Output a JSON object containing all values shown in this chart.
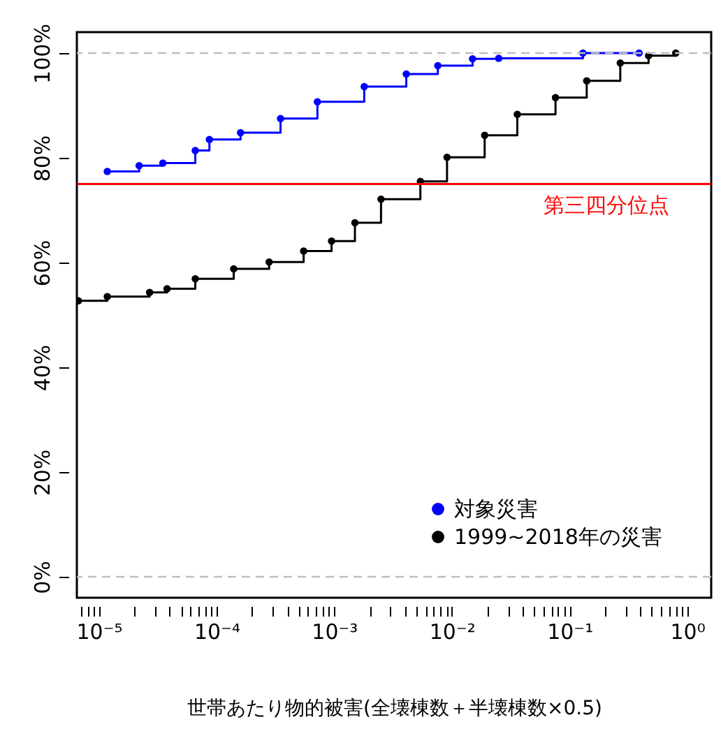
{
  "chart_data": {
    "type": "step",
    "xlabel": "世帯あたり物的被害(全壊棟数＋半壊棟数×0.5)",
    "log": "x",
    "grid": false,
    "legend": "bottom right",
    "marker": "circle",
    "line_style": "solid",
    "xlim": [
      6.5e-06,
      1.6
    ],
    "ylim": [
      -4,
      104
    ],
    "xticks": [
      {
        "value": 7e-06,
        "label": null
      },
      {
        "value": 8e-06,
        "label": null
      },
      {
        "value": 9e-06,
        "label": null
      },
      {
        "value": 1e-05,
        "label": "10⁻⁵"
      },
      {
        "value": 2e-05,
        "label": null
      },
      {
        "value": 3e-05,
        "label": null
      },
      {
        "value": 4e-05,
        "label": null
      },
      {
        "value": 5e-05,
        "label": null
      },
      {
        "value": 6e-05,
        "label": null
      },
      {
        "value": 7e-05,
        "label": null
      },
      {
        "value": 8e-05,
        "label": null
      },
      {
        "value": 9e-05,
        "label": null
      },
      {
        "value": 0.0001,
        "label": "10⁻⁴"
      },
      {
        "value": 0.0002,
        "label": null
      },
      {
        "value": 0.0003,
        "label": null
      },
      {
        "value": 0.0004,
        "label": null
      },
      {
        "value": 0.0005,
        "label": null
      },
      {
        "value": 0.0006,
        "label": null
      },
      {
        "value": 0.0007,
        "label": null
      },
      {
        "value": 0.0008,
        "label": null
      },
      {
        "value": 0.0009,
        "label": null
      },
      {
        "value": 0.001,
        "label": "10⁻³"
      },
      {
        "value": 0.002,
        "label": null
      },
      {
        "value": 0.003,
        "label": null
      },
      {
        "value": 0.004,
        "label": null
      },
      {
        "value": 0.005,
        "label": null
      },
      {
        "value": 0.006,
        "label": null
      },
      {
        "value": 0.007,
        "label": null
      },
      {
        "value": 0.008,
        "label": null
      },
      {
        "value": 0.009,
        "label": null
      },
      {
        "value": 0.01,
        "label": "10⁻²"
      },
      {
        "value": 0.02,
        "label": null
      },
      {
        "value": 0.03,
        "label": null
      },
      {
        "value": 0.04,
        "label": null
      },
      {
        "value": 0.05,
        "label": null
      },
      {
        "value": 0.06,
        "label": null
      },
      {
        "value": 0.07,
        "label": null
      },
      {
        "value": 0.08,
        "label": null
      },
      {
        "value": 0.09,
        "label": null
      },
      {
        "value": 0.1,
        "label": "10⁻¹"
      },
      {
        "value": 0.2,
        "label": null
      },
      {
        "value": 0.3,
        "label": null
      },
      {
        "value": 0.4,
        "label": null
      },
      {
        "value": 0.5,
        "label": null
      },
      {
        "value": 0.6,
        "label": null
      },
      {
        "value": 0.7,
        "label": null
      },
      {
        "value": 0.8,
        "label": null
      },
      {
        "value": 0.9,
        "label": null
      },
      {
        "value": 1,
        "label": "10⁰"
      }
    ],
    "yticks": [
      {
        "value": 0,
        "label": "0%"
      },
      {
        "value": 20,
        "label": "20%"
      },
      {
        "value": 40,
        "label": "40%"
      },
      {
        "value": 60,
        "label": "60%"
      },
      {
        "value": 80,
        "label": "80%"
      },
      {
        "value": 100,
        "label": "100%"
      }
    ],
    "ref_lines": [
      {
        "axis": "y",
        "value": 75,
        "label": "第三四分位点",
        "color": "#ff0000",
        "line_style": "solid"
      },
      {
        "axis": "y",
        "value": 100,
        "label": null,
        "color": "#bebebe",
        "line_style": "dashed"
      },
      {
        "axis": "y",
        "value": 0,
        "label": null,
        "color": "#bebebe",
        "line_style": "dashed"
      }
    ],
    "series": [
      {
        "name": "対象災害",
        "color": "#0000ff",
        "x": [
          1.18e-05,
          2.2e-05,
          3.5e-05,
          6.6e-05,
          8.7e-05,
          0.00016,
          0.00035,
          0.00072,
          0.0018,
          0.0041,
          0.0076,
          0.015,
          0.025,
          0.13,
          0.39
        ],
        "values": [
          77.4,
          78.5,
          79.0,
          81.4,
          83.5,
          84.8,
          87.5,
          90.7,
          93.6,
          96.0,
          97.6,
          98.9,
          99.0,
          100,
          100
        ]
      },
      {
        "name": "1999~2018年の災害",
        "color": "#000000",
        "x": [
          6.7e-06,
          1.18e-05,
          2.7e-05,
          3.8e-05,
          6.6e-05,
          0.00014,
          0.00028,
          0.00055,
          0.00095,
          0.0015,
          0.0025,
          0.0054,
          0.0091,
          0.019,
          0.036,
          0.076,
          0.14,
          0.27,
          0.47,
          0.8
        ],
        "values": [
          52.7,
          53.5,
          54.3,
          55.0,
          56.9,
          58.8,
          60.1,
          62.2,
          64.1,
          67.6,
          72.1,
          75.5,
          80.1,
          84.3,
          88.3,
          91.5,
          94.7,
          98.1,
          99.5,
          100
        ]
      }
    ]
  }
}
